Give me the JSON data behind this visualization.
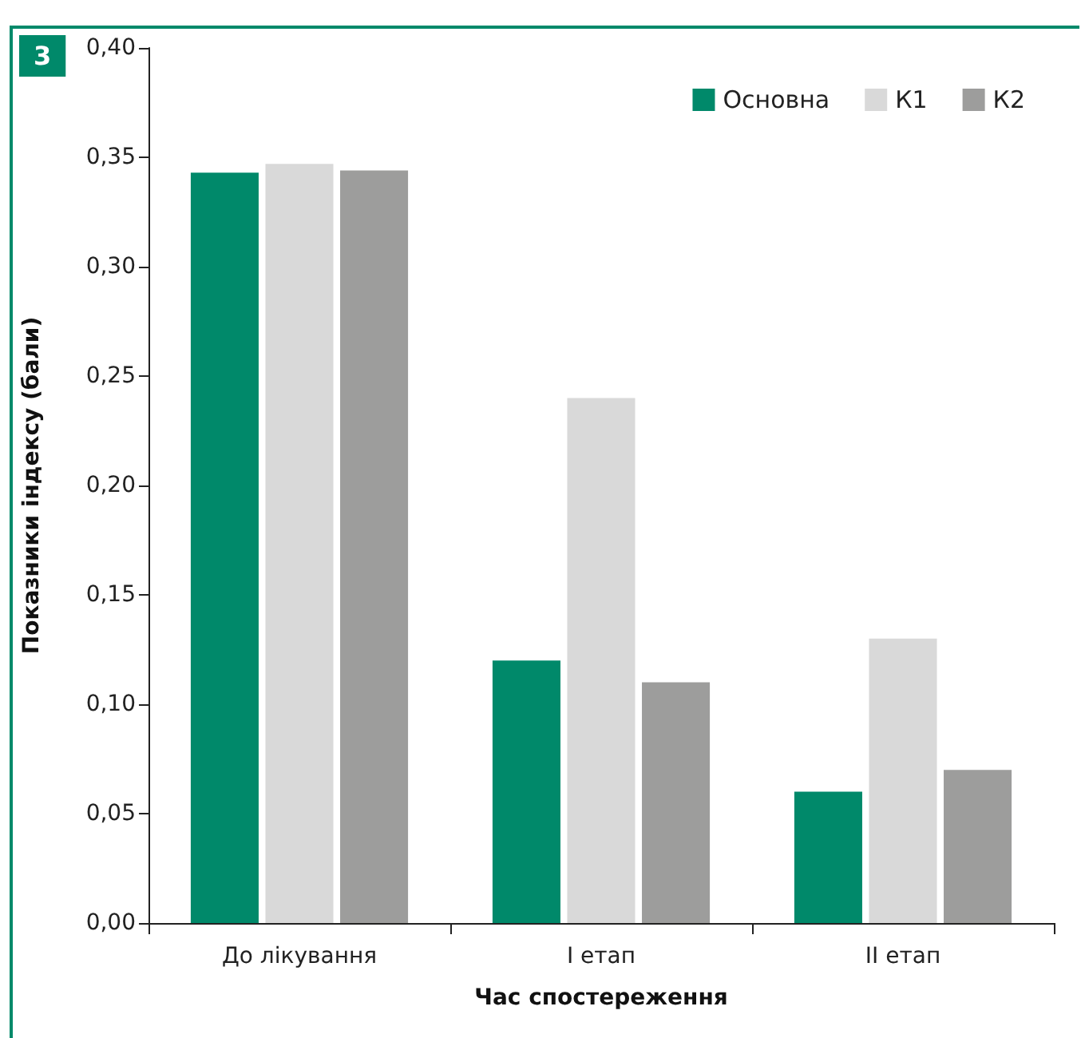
{
  "chart_data": {
    "type": "bar",
    "xlabel": "Час спостереження",
    "ylabel": "Показники індексу (бали)",
    "annotations": [
      "3"
    ],
    "categories": [
      "До лікування",
      "I етап",
      "II етап"
    ],
    "series": [
      {
        "name": "Основна",
        "color": "#00896a",
        "values": [
          0.343,
          0.12,
          0.06
        ]
      },
      {
        "name": "К1",
        "color": "#d9d9d9",
        "values": [
          0.347,
          0.24,
          0.13
        ]
      },
      {
        "name": "К2",
        "color": "#9d9d9c",
        "values": [
          0.344,
          0.11,
          0.07
        ]
      }
    ],
    "ylim": [
      0,
      0.4
    ],
    "yticks": [
      {
        "value": 0,
        "label": "0,00"
      },
      {
        "value": 0.05,
        "label": "0,05"
      },
      {
        "value": 0.1,
        "label": "0,10"
      },
      {
        "value": 0.15,
        "label": "0,15"
      },
      {
        "value": 0.2,
        "label": "0,20"
      },
      {
        "value": 0.25,
        "label": "0,25"
      },
      {
        "value": 0.3,
        "label": "0,30"
      },
      {
        "value": 0.35,
        "label": "0,35"
      },
      {
        "value": 0.4,
        "label": "0,40"
      }
    ],
    "grid": false,
    "legend": "top right"
  }
}
